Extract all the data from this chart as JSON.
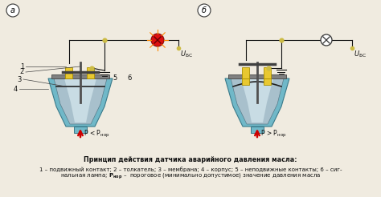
{
  "bg_color": "#f0ebe0",
  "label_a": "а",
  "label_b": "б",
  "yellow": "#e8c830",
  "yellow_edge": "#aa9000",
  "body_cyan": "#70b8c8",
  "body_cyan_edge": "#3a7a8a",
  "body_inner": "#a8c0cc",
  "body_center": "#c8dce4",
  "body_dark": "#608090",
  "rod_color": "#505050",
  "contact_color": "#404040",
  "circuit_color": "#111111",
  "lamp_on_fill": "#dd1010",
  "lamp_on_edge": "#880808",
  "lamp_ray": "#ff8800",
  "lamp_off_fill": "#ffffff",
  "lamp_off_edge": "#333333",
  "arrow_color": "#cc0000",
  "gnd_color": "#111111",
  "node_color": "#ccbb44",
  "plate_color": "#808080",
  "plate_edge": "#444444",
  "mem_color": "#222222",
  "caption_title": "Принцип действия датчика аварийного давления масла:",
  "caption_line2": "1 – подвижный контакт; 2 – толкатель; 3 – мембрана; 4 – корпус; 5 – неподвижные контакты; 6 – сиг-",
  "caption_line3_pre": "нальная лампа; ",
  "caption_line3_Pnor": "Pнор",
  "caption_line3_post": " –  пороговое (минимально допустимое) значение давления масла"
}
